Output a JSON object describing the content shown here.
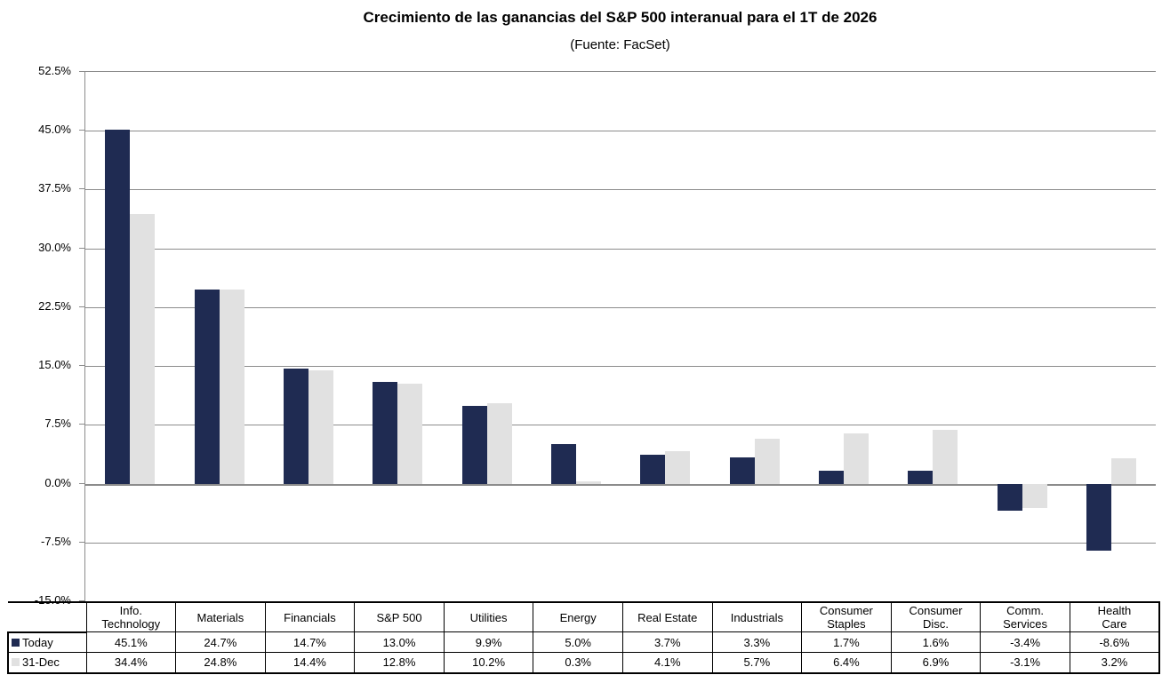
{
  "colors": {
    "today_bar": "#1F2B52",
    "dec_bar": "#E1E1E1",
    "gridline": "#8C8C8C",
    "table_border": "#000000",
    "text": "#000000"
  },
  "chart_data": {
    "type": "bar",
    "title": "Crecimiento de las ganancias del S&P 500 interanual para el 1T de 2026",
    "subtitle": "(Fuente: FacSet)",
    "categories": [
      "Info. Technology",
      "Materials",
      "Financials",
      "S&P 500",
      "Utilities",
      "Energy",
      "Real Estate",
      "Industrials",
      "Consumer Staples",
      "Consumer Disc.",
      "Comm. Services",
      "Health Care"
    ],
    "series": [
      {
        "name": "Today",
        "color_key": "today_bar",
        "values": [
          45.1,
          24.7,
          14.7,
          13.0,
          9.9,
          5.0,
          3.7,
          3.3,
          1.7,
          1.6,
          -3.4,
          -8.6
        ]
      },
      {
        "name": "31-Dec",
        "color_key": "dec_bar",
        "values": [
          34.4,
          24.8,
          14.4,
          12.8,
          10.2,
          0.3,
          4.1,
          5.7,
          6.4,
          6.9,
          -3.1,
          3.2
        ]
      }
    ],
    "ylim": [
      -15,
      52.5
    ],
    "yticks": [
      52.5,
      45.0,
      37.5,
      30.0,
      22.5,
      15.0,
      7.5,
      0.0,
      -7.5,
      -15.0
    ],
    "ytick_labels": [
      "52.5%",
      "45.0%",
      "37.5%",
      "30.0%",
      "22.5%",
      "15.0%",
      "7.5%",
      "0.0%",
      "-7.5%",
      "-15.0%"
    ],
    "grid": true,
    "legend_position": "bottom-table-left"
  },
  "table": {
    "row_headers": [
      "Today",
      "31-Dec"
    ],
    "column_headers": [
      "Info.\nTechnology",
      "Materials",
      "Financials",
      "S&P 500",
      "Utilities",
      "Energy",
      "Real Estate",
      "Industrials",
      "Consumer\nStaples",
      "Consumer\nDisc.",
      "Comm.\nServices",
      "Health\nCare"
    ],
    "rows": [
      [
        "45.1%",
        "24.7%",
        "14.7%",
        "13.0%",
        "9.9%",
        "5.0%",
        "3.7%",
        "3.3%",
        "1.7%",
        "1.6%",
        "-3.4%",
        "-8.6%"
      ],
      [
        "34.4%",
        "24.8%",
        "14.4%",
        "12.8%",
        "10.2%",
        "0.3%",
        "4.1%",
        "5.7%",
        "6.4%",
        "6.9%",
        "-3.1%",
        "3.2%"
      ]
    ]
  }
}
